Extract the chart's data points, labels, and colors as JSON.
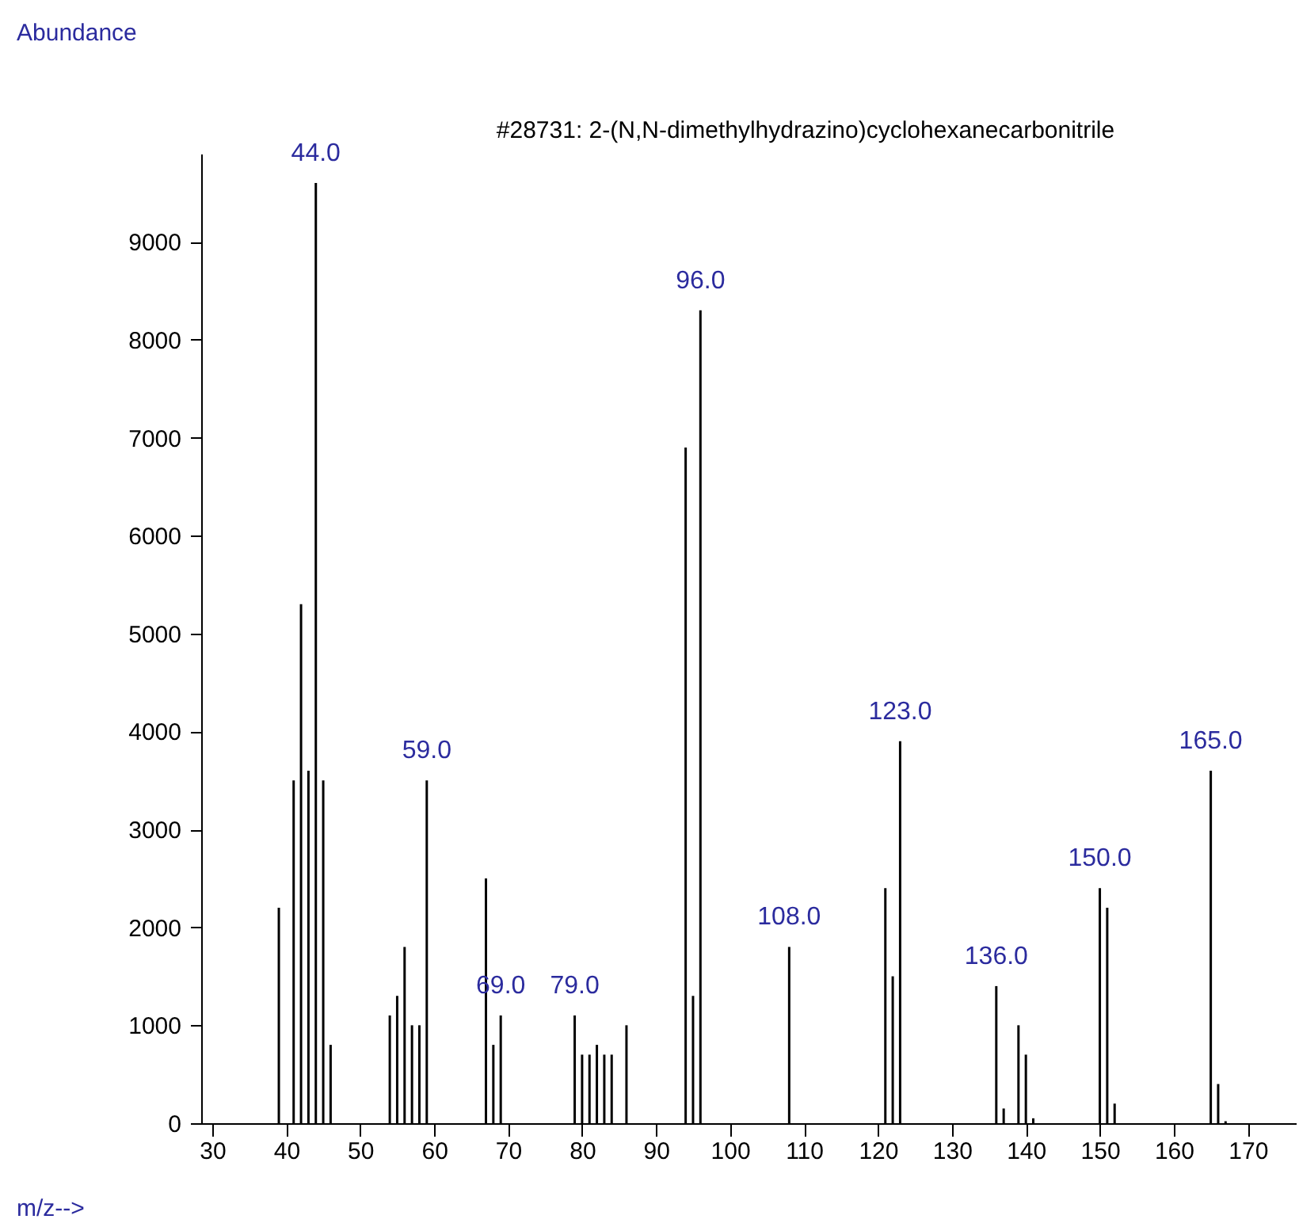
{
  "chart_data": {
    "type": "bar",
    "title": "#28731: 2-(N,N-dimethylhydrazino)cyclohexanecarbonitrile",
    "xlabel": "m/z-->",
    "ylabel": "Abundance",
    "x": [
      39,
      41,
      42,
      43,
      44,
      45,
      46,
      54,
      55,
      56,
      57,
      58,
      59,
      67,
      68,
      69,
      79,
      80,
      81,
      82,
      83,
      84,
      86,
      94,
      95,
      96,
      108,
      121,
      122,
      123,
      136,
      137,
      139,
      140,
      141,
      150,
      151,
      152,
      165,
      166,
      167
    ],
    "values": [
      2200,
      3500,
      5300,
      3600,
      9600,
      3500,
      800,
      1100,
      1300,
      1800,
      1000,
      1000,
      3500,
      2500,
      800,
      1100,
      1100,
      700,
      700,
      800,
      700,
      700,
      1000,
      6900,
      1300,
      8300,
      1800,
      2400,
      1500,
      3900,
      1400,
      150,
      1000,
      700,
      50,
      2400,
      2200,
      200,
      3600,
      400,
      20
    ],
    "color": "#000000",
    "annotations": [
      {
        "text": "44.0",
        "x": 44,
        "y": 9600
      },
      {
        "text": "59.0",
        "x": 59,
        "y": 3500
      },
      {
        "text": "69.0",
        "x": 69,
        "y": 1100
      },
      {
        "text": "79.0",
        "x": 79,
        "y": 1100
      },
      {
        "text": "96.0",
        "x": 96,
        "y": 8300
      },
      {
        "text": "108.0",
        "x": 108,
        "y": 1800
      },
      {
        "text": "123.0",
        "x": 123,
        "y": 3900
      },
      {
        "text": "136.0",
        "x": 136,
        "y": 1400
      },
      {
        "text": "150.0",
        "x": 150,
        "y": 2400
      },
      {
        "text": "165.0",
        "x": 165,
        "y": 3600
      }
    ],
    "xlim": [
      28.5,
      176.5
    ],
    "xticks": [
      30,
      40,
      50,
      60,
      70,
      80,
      90,
      100,
      110,
      120,
      130,
      140,
      150,
      160,
      170
    ],
    "ylim": [
      0,
      9900
    ],
    "yticks": [
      0,
      1000,
      2000,
      3000,
      4000,
      5000,
      6000,
      7000,
      8000,
      9000
    ],
    "grid": false
  }
}
